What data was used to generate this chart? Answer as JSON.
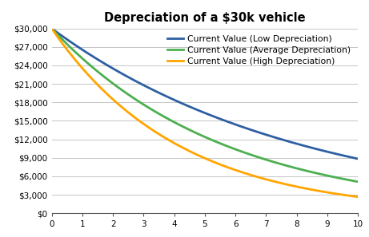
{
  "title": "Depreciation of a $30k vehicle",
  "initial_value": 30000,
  "low_rate": 0.885,
  "avg_rate": 0.838,
  "high_rate": 0.785,
  "x_min": 0,
  "x_max": 10,
  "y_min": 0,
  "y_max": 30000,
  "y_ticks": [
    0,
    3000,
    6000,
    9000,
    12000,
    15000,
    18000,
    21000,
    24000,
    27000,
    30000
  ],
  "x_ticks": [
    0,
    1,
    2,
    3,
    4,
    5,
    6,
    7,
    8,
    9,
    10
  ],
  "color_low": "#2E5FA3",
  "color_avg": "#4CAF50",
  "color_high": "#FFA500",
  "line_width": 2.0,
  "legend_low": "Current Value (Low Depreciation)",
  "legend_avg": "Current Value (Average Depreciation)",
  "legend_high": "Current Value (High Depreciation)",
  "bg_color": "#FFFFFF",
  "grid_color": "#BBBBBB",
  "title_fontsize": 10.5,
  "legend_fontsize": 7.8,
  "tick_fontsize": 7.5
}
